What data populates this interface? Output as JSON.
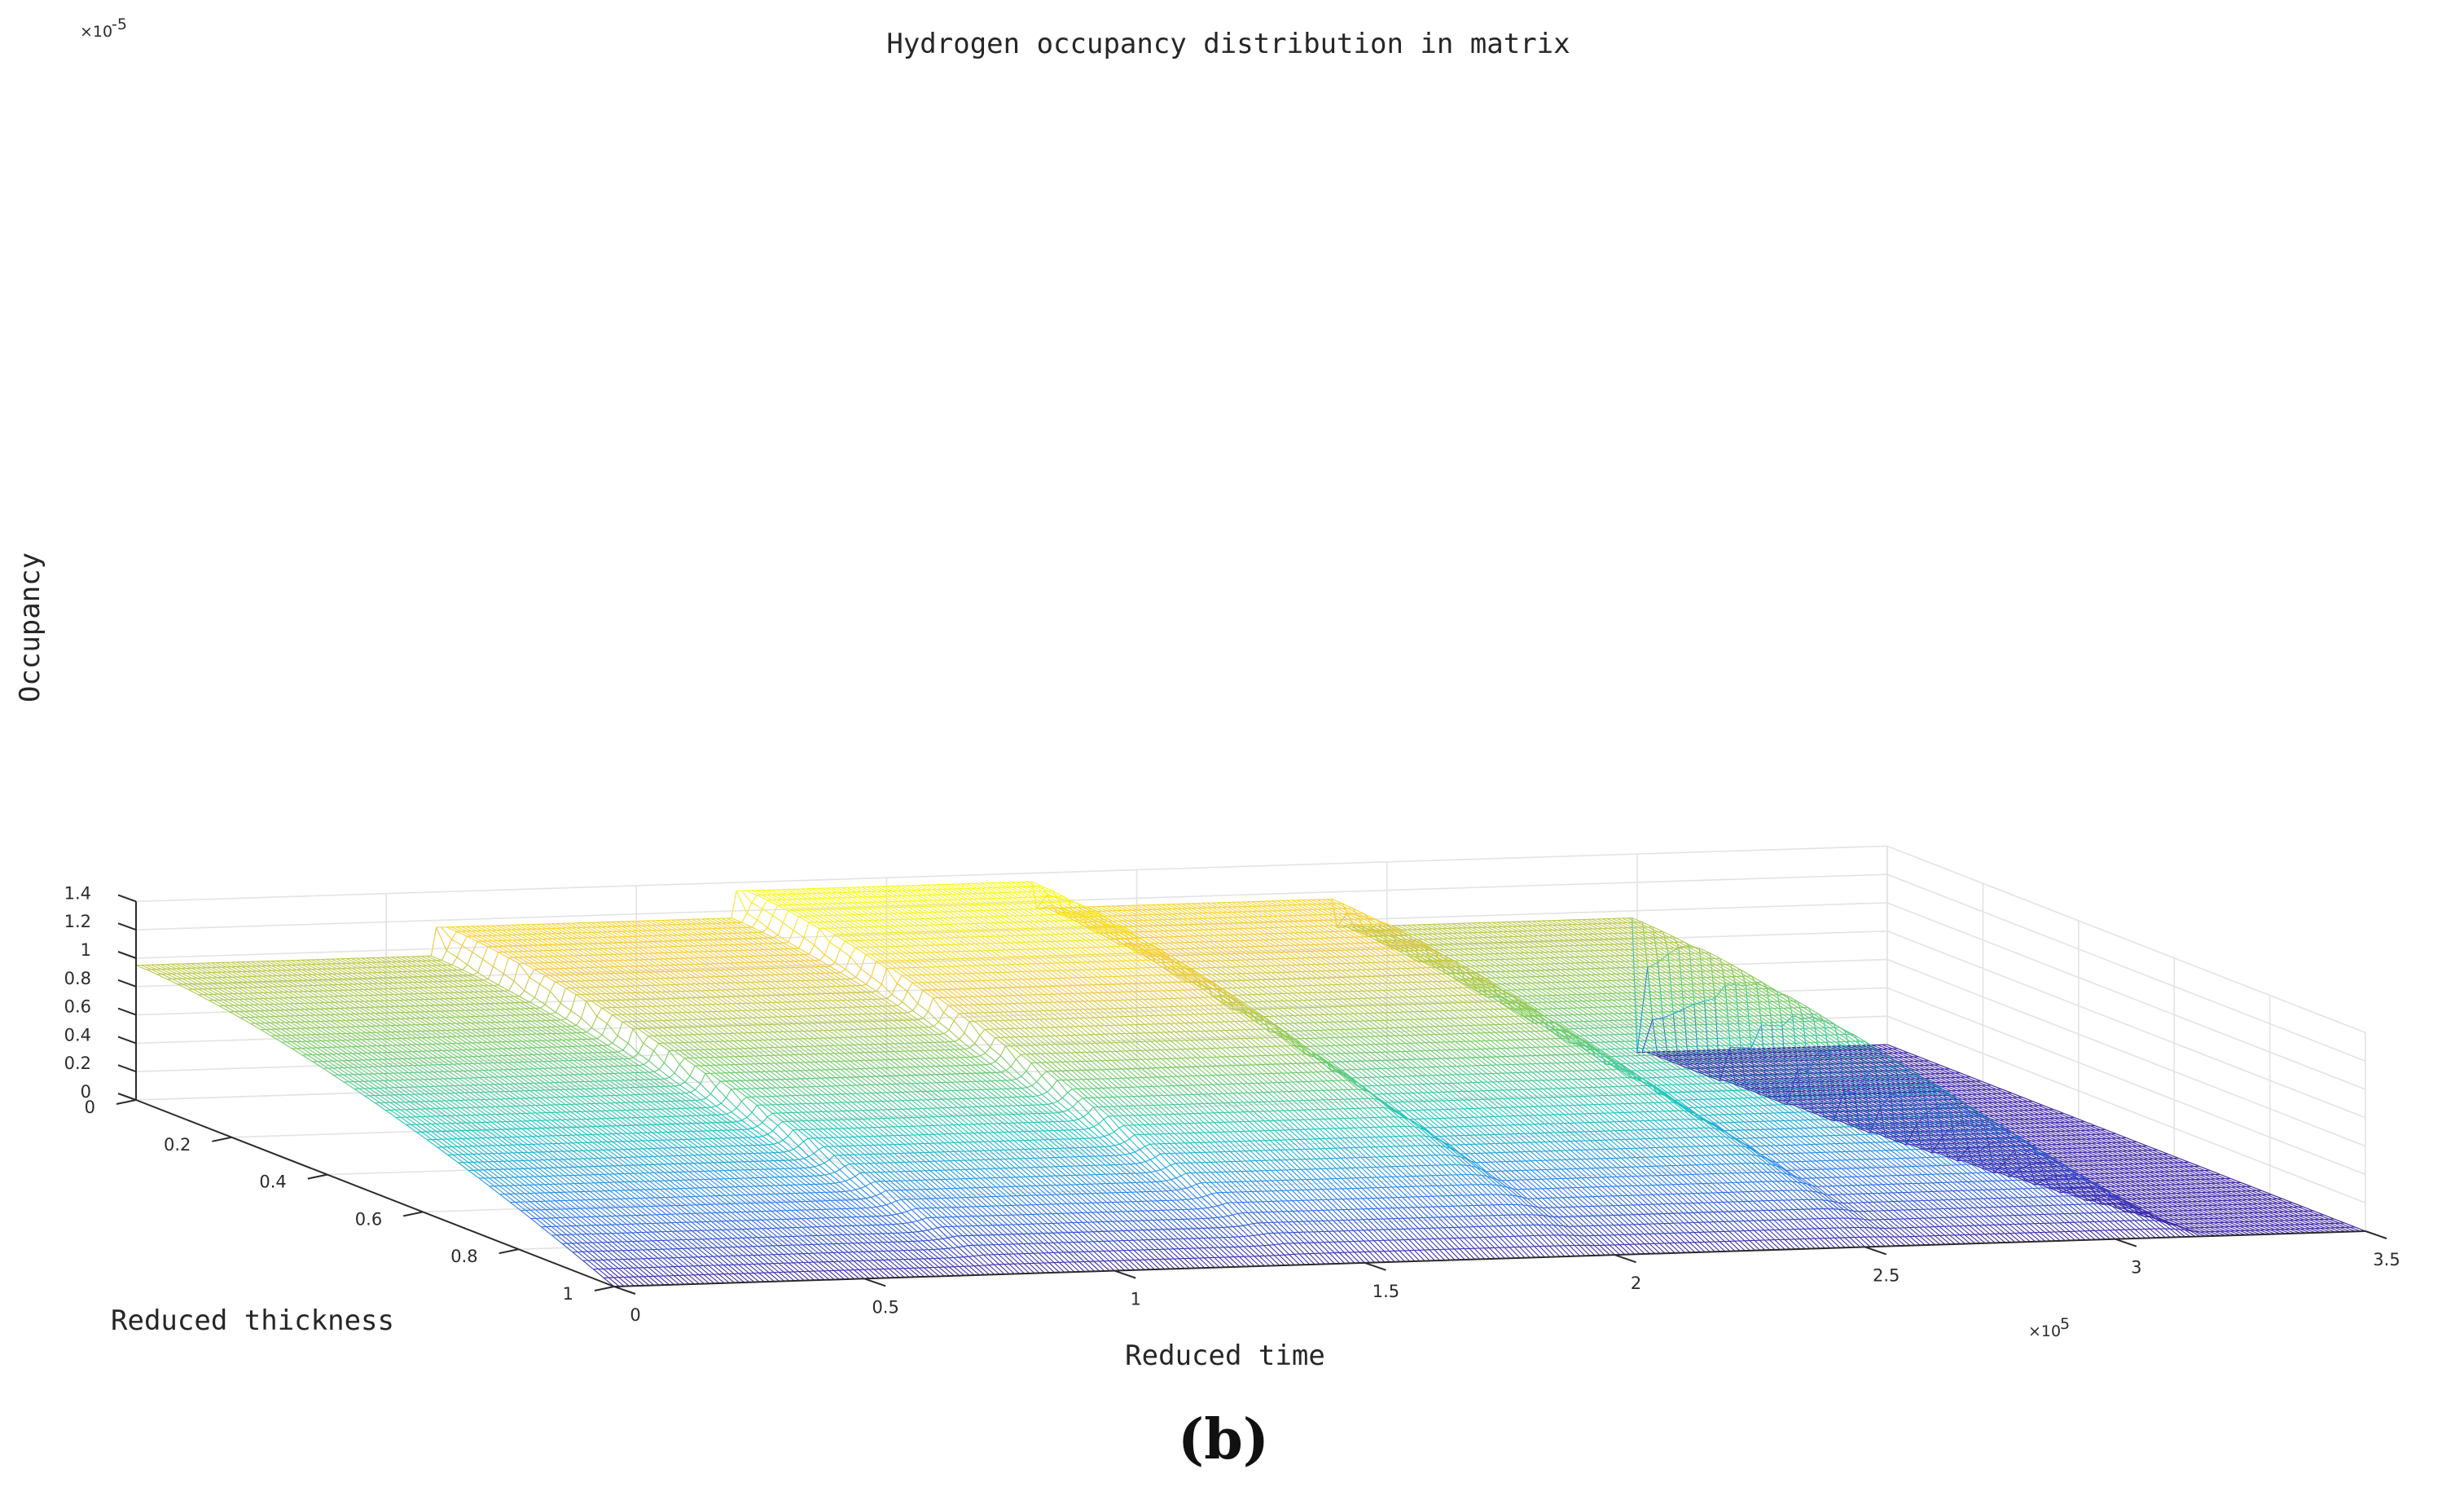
{
  "chart_data": {
    "type": "surface",
    "title": "Hydrogen occupancy distribution in matrix",
    "xlabel": "Reduced time",
    "ylabel": "Reduced thickness",
    "zlabel": "Occupancy",
    "panel_label": "(b)",
    "x_exponent": "×10^5",
    "z_exponent": "×10^-5",
    "x_ticks": [
      "0",
      "0.5",
      "1",
      "1.5",
      "2",
      "2.5",
      "3",
      "3.5"
    ],
    "y_ticks": [
      "0",
      "0.2",
      "0.4",
      "0.6",
      "0.8",
      "1"
    ],
    "z_ticks": [
      "0",
      "0.2",
      "0.4",
      "0.6",
      "0.8",
      "1",
      "1.2",
      "1.4"
    ],
    "xlim": [
      0,
      3.5
    ],
    "ylim": [
      0,
      1
    ],
    "zlim": [
      0,
      1.4
    ],
    "grid": true,
    "colormap": "parula",
    "colors": [
      "#3e26a8",
      "#2e7ff5",
      "#1ac7c2",
      "#7fcb5f",
      "#f6c73b",
      "#f9fb15"
    ],
    "surface_boundary_value_steps": [
      {
        "x_start": 0,
        "x_end": 0.6,
        "value": 0.95
      },
      {
        "x_start": 0.6,
        "x_end": 1.2,
        "value": 1.15
      },
      {
        "x_start": 1.2,
        "x_end": 1.8,
        "value": 1.34
      },
      {
        "x_start": 1.8,
        "x_end": 2.4,
        "value": 1.15
      },
      {
        "x_start": 2.4,
        "x_end": 3.0,
        "value": 0.95
      },
      {
        "x_start": 3.0,
        "x_end": 3.5,
        "value": 0
      }
    ]
  }
}
